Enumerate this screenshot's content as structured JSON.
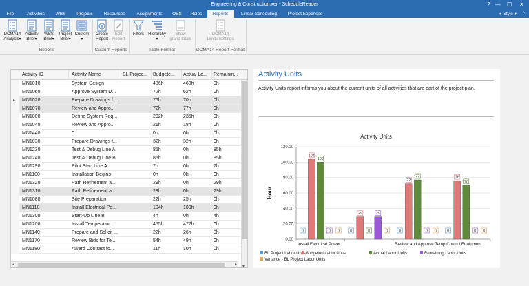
{
  "window": {
    "title": "Engineering & Construction.xer - ScheduleReader",
    "help": "?"
  },
  "menu": {
    "tabs": [
      "File",
      "Activities",
      "WBS",
      "Projects",
      "Resources",
      "Assignments",
      "OBS",
      "Roles",
      "Reports",
      "Linear Scheduling",
      "Project Expenses"
    ],
    "active": "Reports",
    "style_label": "Style"
  },
  "ribbon": {
    "buttons": [
      {
        "label": "DCMA14\nAnalysis",
        "dropdown": true,
        "icon": "checklist-icon",
        "enabled": true
      },
      {
        "label": "Activity\nBrief",
        "dropdown": true,
        "icon": "report-icon",
        "enabled": true
      },
      {
        "label": "WBS\nBrief",
        "dropdown": true,
        "icon": "report-icon",
        "enabled": true
      },
      {
        "label": "Project\nBrief",
        "dropdown": true,
        "icon": "report-icon",
        "enabled": true
      },
      {
        "label": "Custom",
        "dropdown": true,
        "icon": "custom-report-icon",
        "enabled": true
      },
      {
        "label": "Create\nReport",
        "dropdown": false,
        "icon": "create-report-icon",
        "enabled": true
      },
      {
        "label": "Edit\nReport",
        "dropdown": false,
        "icon": "edit-report-icon",
        "enabled": false
      },
      {
        "label": "Filters",
        "dropdown": false,
        "icon": "filter-icon",
        "enabled": true
      },
      {
        "label": "Hierarchy",
        "dropdown": true,
        "icon": "hierarchy-icon",
        "enabled": true
      },
      {
        "label": "Show\ngrand totals",
        "dropdown": false,
        "icon": "grand-totals-icon",
        "enabled": false
      },
      {
        "label": "DCMA14\nLimits Settings",
        "dropdown": false,
        "icon": "limits-settings-icon",
        "enabled": false
      }
    ],
    "groups": [
      "Reports",
      "Custom Reports",
      "Table Format",
      "DCMA14 Report Format"
    ]
  },
  "grid": {
    "columns": [
      "Activity ID",
      "Activity Name",
      "BL Project Labor Units",
      "Budgeted Labor Units",
      "Actual Labor Units",
      "Remaining Labor Units"
    ],
    "column_display": [
      "Activity ID",
      "Activity Name",
      "BL Projec...",
      "Budgete...",
      "Actual La...",
      "Remainin..."
    ],
    "rows": [
      [
        "MN1010",
        "System Design",
        "",
        "486h",
        "468h",
        "0h"
      ],
      [
        "MN1060",
        "Approve System D...",
        "",
        "72h",
        "62h",
        "0h"
      ],
      [
        "MN1020",
        "Prepare Drawings f...",
        "",
        "76h",
        "70h",
        "0h"
      ],
      [
        "MN1070",
        "Review and Appro...",
        "",
        "72h",
        "77h",
        "0h"
      ],
      [
        "MN1000",
        "Define System Req...",
        "",
        "202h",
        "235h",
        "0h"
      ],
      [
        "MN1040",
        "Review and Appro...",
        "",
        "21h",
        "18h",
        "0h"
      ],
      [
        "MN1440",
        "0",
        "",
        "0h",
        "0h",
        "0h"
      ],
      [
        "MN1030",
        "Prepare Drawings f...",
        "",
        "32h",
        "32h",
        "0h"
      ],
      [
        "MN1230",
        "Test & Debug Line A",
        "",
        "85h",
        "0h",
        "85h"
      ],
      [
        "MN1240",
        "Test & Debug Line B",
        "",
        "85h",
        "0h",
        "85h"
      ],
      [
        "MN1290",
        "Pilot Start Line A",
        "",
        "7h",
        "0h",
        "7h"
      ],
      [
        "MN1100",
        "Installation Begins",
        "",
        "0h",
        "0h",
        "0h"
      ],
      [
        "MN1320",
        "Path Refinement a...",
        "",
        "29h",
        "0h",
        "29h"
      ],
      [
        "MN1310",
        "Path Refinement a...",
        "",
        "29h",
        "0h",
        "29h"
      ],
      [
        "MN1080",
        "Site Preparation",
        "",
        "22h",
        "25h",
        "0h"
      ],
      [
        "MN1110",
        "Install Electrical Po...",
        "",
        "104h",
        "100h",
        "0h"
      ],
      [
        "MN1300",
        "Start-Up Line B",
        "",
        "4h",
        "0h",
        "4h"
      ],
      [
        "MN1200",
        "Install Temperatur...",
        "",
        "455h",
        "472h",
        "0h"
      ],
      [
        "MN1140",
        "Prepare and Solicit ...",
        "",
        "22h",
        "26h",
        "0h"
      ],
      [
        "MN1170",
        "Review Bids for Te...",
        "",
        "54h",
        "49h",
        "0h"
      ],
      [
        "MN1180",
        "Award Contract fo...",
        "",
        "11h",
        "10h",
        "0h"
      ]
    ],
    "highlighted_rows": [
      2,
      3,
      13,
      15
    ],
    "current_row": 2
  },
  "panel": {
    "title": "Activity Units",
    "description": "Activity Units report informs you about the current units of all activities that are part of the project plan."
  },
  "chart_data": {
    "type": "bar",
    "title": "Activity Units",
    "ylabel": "Hour",
    "xlabel": "",
    "ylim": [
      0,
      120
    ],
    "yticks": [
      "0.00",
      "20.00",
      "40.00",
      "60.00",
      "80.00",
      "100.00",
      "120.00"
    ],
    "categories": [
      "Install Electrical Power",
      "",
      "Review and Approve Temp Control Equipment",
      ""
    ],
    "series": [
      {
        "name": "BL Project Labor Units",
        "color": "#5b9bd5",
        "values": [
          0,
          0,
          0,
          0
        ]
      },
      {
        "name": "Budgeted Labor Units",
        "color": "#e07a7a",
        "values": [
          104,
          29,
          72,
          76
        ]
      },
      {
        "name": "Actual Labor Units",
        "color": "#5f8a3a",
        "values": [
          100,
          0,
          77,
          70
        ]
      },
      {
        "name": "Remaining Labor Units",
        "color": "#9b59d6",
        "values": [
          0,
          29,
          0,
          0
        ]
      },
      {
        "name": "Variance - BL Project Labor Units",
        "color": "#f0a050",
        "values": [
          0,
          0,
          0,
          0
        ]
      }
    ],
    "legend_position": "bottom"
  }
}
